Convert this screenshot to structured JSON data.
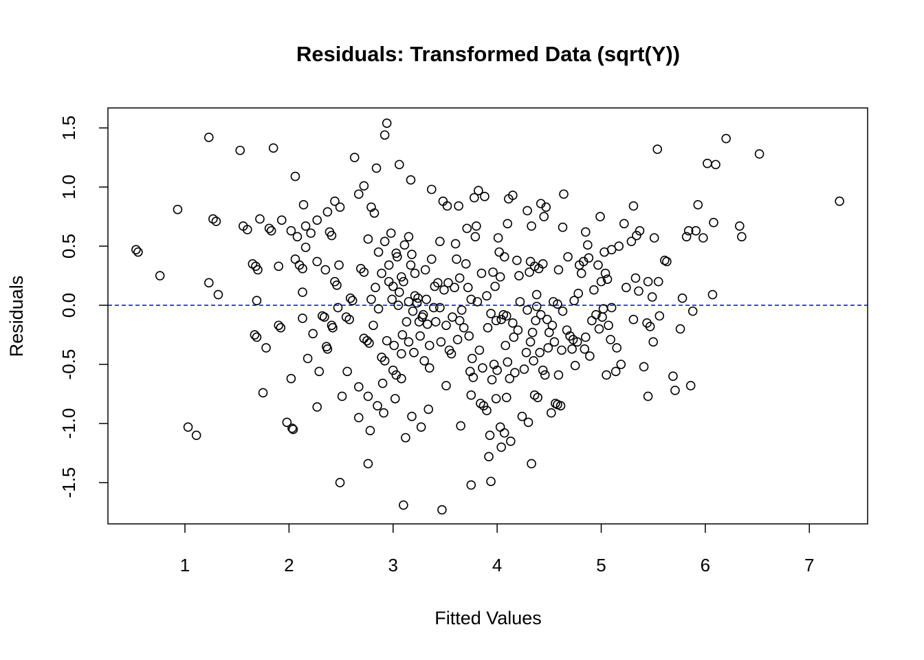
{
  "chart_data": {
    "type": "scatter",
    "title": "Residuals: Transformed Data (sqrt(Y))",
    "xlabel": "Fitted Values",
    "ylabel": "Residuals",
    "marker_color": "#000000",
    "marker": "open-circle",
    "xlim": [
      0.26,
      7.56
    ],
    "ylim": [
      -1.849,
      1.669
    ],
    "xticks": [
      1,
      2,
      3,
      4,
      5,
      6,
      7
    ],
    "yticks": [
      -1.5,
      {
        "value": -1,
        "label": "-1.0"
      },
      -0.5,
      {
        "value": 0,
        "label": "0.0"
      },
      0.5,
      {
        "value": 1,
        "label": "1.0"
      },
      1.5
    ],
    "reference_line": {
      "y": 0,
      "color": "#0000ff",
      "style": "dashed"
    },
    "x": [
      0.53,
      0.55,
      0.76,
      0.93,
      1.03,
      1.11,
      1.23,
      1.23,
      1.27,
      1.3,
      1.32,
      1.53,
      1.56,
      1.6,
      1.65,
      1.67,
      1.69,
      1.68,
      1.7,
      1.69,
      1.72,
      1.75,
      1.78,
      1.81,
      1.83,
      1.85,
      1.9,
      1.9,
      1.92,
      1.93,
      1.98,
      2.02,
      2.02,
      2.03,
      2.04,
      2.06,
      2.08,
      2.06,
      2.1,
      2.13,
      2.13,
      2.13,
      2.14,
      2.16,
      2.16,
      2.18,
      2.21,
      2.23,
      2.27,
      2.27,
      2.27,
      2.29,
      2.32,
      2.34,
      2.35,
      2.36,
      2.37,
      2.37,
      2.39,
      2.41,
      2.41,
      2.42,
      2.44,
      2.44,
      2.46,
      2.47,
      2.48,
      2.49,
      2.49,
      2.51,
      2.55,
      2.56,
      2.58,
      2.59,
      2.61,
      2.63,
      2.67,
      2.67,
      2.67,
      2.69,
      2.72,
      2.72,
      2.72,
      2.75,
      2.76,
      2.76,
      2.77,
      2.76,
      2.79,
      2.78,
      2.79,
      2.81,
      2.82,
      2.83,
      2.84,
      2.85,
      2.86,
      2.86,
      2.89,
      2.89,
      2.9,
      2.91,
      2.92,
      2.92,
      2.92,
      2.94,
      2.94,
      2.96,
      2.96,
      2.98,
      2.99,
      3.0,
      3.0,
      3.01,
      3.02,
      3.03,
      3.03,
      3.04,
      3.05,
      3.06,
      3.06,
      3.08,
      3.08,
      3.08,
      3.09,
      3.1,
      3.1,
      3.11,
      3.12,
      3.13,
      3.15,
      3.15,
      3.15,
      3.17,
      3.17,
      3.18,
      3.18,
      3.19,
      3.2,
      3.21,
      3.21,
      3.23,
      3.24,
      3.25,
      3.26,
      3.27,
      3.28,
      3.29,
      3.3,
      3.31,
      3.32,
      3.33,
      3.34,
      3.35,
      3.35,
      3.37,
      3.37,
      3.39,
      3.4,
      3.41,
      3.43,
      3.45,
      3.45,
      3.46,
      3.47,
      3.48,
      3.49,
      3.51,
      3.51,
      3.52,
      3.53,
      3.54,
      3.56,
      3.57,
      3.59,
      3.6,
      3.61,
      3.62,
      3.63,
      3.64,
      3.64,
      3.65,
      3.66,
      3.68,
      3.7,
      3.71,
      3.72,
      3.73,
      3.74,
      3.75,
      3.75,
      3.75,
      3.76,
      3.77,
      3.78,
      3.79,
      3.8,
      3.81,
      3.82,
      3.83,
      3.84,
      3.85,
      3.86,
      3.87,
      3.88,
      3.9,
      3.9,
      3.91,
      3.92,
      3.93,
      3.94,
      3.94,
      3.95,
      3.96,
      3.97,
      3.98,
      3.99,
      3.99,
      4.0,
      4.01,
      4.02,
      4.03,
      4.03,
      4.04,
      4.04,
      4.06,
      4.07,
      4.07,
      4.08,
      4.09,
      4.09,
      4.1,
      4.1,
      4.11,
      4.12,
      4.13,
      4.15,
      4.15,
      4.16,
      4.17,
      4.19,
      4.2,
      4.21,
      4.22,
      4.24,
      4.26,
      4.28,
      4.29,
      4.29,
      4.3,
      4.31,
      4.32,
      4.32,
      4.33,
      4.33,
      4.34,
      4.35,
      4.36,
      4.36,
      4.37,
      4.38,
      4.38,
      4.39,
      4.4,
      4.41,
      4.42,
      4.42,
      4.44,
      4.44,
      4.45,
      4.46,
      4.47,
      4.48,
      4.49,
      4.5,
      4.52,
      4.53,
      4.54,
      4.55,
      4.56,
      4.58,
      4.58,
      4.59,
      4.59,
      4.61,
      4.62,
      4.63,
      4.63,
      4.64,
      4.67,
      4.68,
      4.7,
      4.72,
      4.73,
      4.74,
      4.75,
      4.77,
      4.78,
      4.79,
      4.81,
      4.83,
      4.84,
      4.85,
      4.85,
      4.87,
      4.88,
      4.89,
      4.91,
      4.93,
      4.95,
      4.97,
      4.98,
      4.99,
      5.0,
      5.01,
      5.02,
      5.03,
      5.04,
      5.05,
      5.06,
      5.07,
      5.09,
      5.1,
      5.1,
      5.14,
      5.15,
      5.17,
      5.19,
      5.22,
      5.24,
      5.29,
      5.31,
      5.31,
      5.33,
      5.34,
      5.36,
      5.37,
      5.41,
      5.44,
      5.45,
      5.45,
      5.47,
      5.49,
      5.5,
      5.51,
      5.54,
      5.55,
      5.56,
      5.61,
      5.63,
      5.69,
      5.71,
      5.76,
      5.78,
      5.82,
      5.84,
      5.86,
      5.88,
      5.91,
      5.93,
      5.98,
      6.02,
      6.07,
      6.08,
      6.1,
      6.2,
      6.33,
      6.35,
      6.52,
      7.29
    ],
    "values": [
      0.47,
      0.45,
      0.25,
      0.81,
      -1.03,
      -1.1,
      1.42,
      0.19,
      0.73,
      0.71,
      0.09,
      1.31,
      0.67,
      0.64,
      0.35,
      -0.25,
      -0.27,
      0.33,
      0.3,
      0.04,
      0.73,
      -0.74,
      -0.36,
      0.65,
      0.63,
      1.33,
      0.33,
      -0.17,
      -0.19,
      0.72,
      -0.99,
      0.63,
      -0.62,
      -1.04,
      -1.05,
      1.09,
      0.58,
      0.39,
      0.34,
      0.31,
      -0.11,
      0.11,
      0.85,
      0.49,
      0.67,
      -0.45,
      0.61,
      -0.24,
      0.72,
      0.37,
      -0.86,
      -0.56,
      -0.09,
      -0.1,
      0.3,
      -0.35,
      -0.37,
      0.79,
      0.62,
      0.59,
      -0.17,
      -0.19,
      0.88,
      0.2,
      0.17,
      -0.02,
      0.34,
      0.83,
      -1.5,
      -0.77,
      -0.1,
      -0.56,
      -0.12,
      0.06,
      0.04,
      1.25,
      -0.95,
      -0.69,
      0.94,
      0.31,
      0.28,
      1.01,
      -0.28,
      -0.3,
      -1.34,
      0.56,
      -0.32,
      -0.77,
      0.83,
      -1.06,
      0.05,
      -0.17,
      0.78,
      0.15,
      1.16,
      -0.85,
      0.45,
      -0.03,
      -0.44,
      0.27,
      -0.66,
      -0.91,
      -0.47,
      1.44,
      0.54,
      1.54,
      -0.3,
      0.2,
      0.34,
      0.61,
      0.05,
      -0.55,
      0.16,
      -0.34,
      -0.79,
      0.44,
      -0.59,
      0.41,
      0.0,
      1.19,
      0.11,
      -0.41,
      0.24,
      -0.62,
      -0.25,
      -1.69,
      0.2,
      0.51,
      -1.12,
      -0.14,
      -0.31,
      0.03,
      0.58,
      0.34,
      1.06,
      -0.94,
      0.43,
      -0.05,
      -0.4,
      0.27,
      0.08,
      0.02,
      0.06,
      -0.14,
      -0.26,
      -1.03,
      -0.1,
      -0.08,
      -0.47,
      0.3,
      0.05,
      -0.16,
      -0.88,
      -0.34,
      -0.53,
      0.39,
      0.98,
      -0.02,
      0.16,
      -0.14,
      0.19,
      -0.02,
      0.54,
      -0.31,
      -1.73,
      0.88,
      0.13,
      -0.68,
      -0.17,
      0.84,
      0.19,
      -0.38,
      -0.41,
      -0.1,
      0.15,
      0.52,
      0.39,
      -0.29,
      0.84,
      0.23,
      -0.13,
      -1.02,
      -0.04,
      -0.19,
      0.35,
      0.65,
      0.15,
      -0.26,
      -0.56,
      0.05,
      -1.52,
      -0.76,
      -0.45,
      -0.61,
      0.91,
      0.58,
      0.67,
      0.03,
      0.97,
      -0.38,
      -0.83,
      0.27,
      -0.53,
      -0.85,
      0.92,
      -0.89,
      0.08,
      -0.19,
      -1.28,
      -1.1,
      -1.49,
      -0.07,
      -0.63,
      0.28,
      -0.5,
      0.16,
      -0.13,
      -0.79,
      -0.55,
      0.57,
      0.45,
      -1.03,
      0.24,
      -0.12,
      -1.2,
      -0.08,
      0.41,
      -1.08,
      -0.34,
      -0.09,
      -0.78,
      -0.48,
      0.69,
      0.9,
      -0.62,
      -1.15,
      -0.15,
      0.93,
      -0.27,
      -0.57,
      0.38,
      -0.21,
      0.25,
      0.03,
      -0.94,
      -0.54,
      -0.4,
      -0.04,
      0.8,
      -0.99,
      0.28,
      -0.31,
      0.37,
      -1.34,
      0.67,
      -0.23,
      -0.47,
      -0.76,
      0.33,
      -0.13,
      -0.01,
      0.09,
      -0.78,
      0.31,
      -0.4,
      -0.08,
      0.86,
      -0.55,
      0.35,
      0.75,
      -0.59,
      0.83,
      -0.12,
      -0.36,
      -0.23,
      -0.91,
      -0.17,
      0.03,
      -0.31,
      -0.83,
      0.01,
      -0.84,
      -0.59,
      0.3,
      -0.85,
      -0.38,
      -0.05,
      0.66,
      0.94,
      -0.21,
      0.41,
      -0.26,
      -0.37,
      -0.29,
      0.04,
      -0.51,
      -0.31,
      0.1,
      0.34,
      0.27,
      0.37,
      -0.37,
      0.62,
      -0.27,
      0.51,
      0.4,
      -0.43,
      -0.13,
      0.13,
      -0.08,
      0.34,
      -0.2,
      0.75,
      0.2,
      -0.1,
      -0.03,
      0.45,
      0.27,
      -0.59,
      0.22,
      -0.17,
      -0.29,
      -0.02,
      0.47,
      -0.56,
      -0.36,
      0.5,
      -0.5,
      0.69,
      0.15,
      0.54,
      -0.12,
      0.84,
      0.23,
      0.59,
      0.12,
      0.63,
      -0.52,
      -0.15,
      0.2,
      -0.77,
      -0.18,
      0.07,
      -0.31,
      0.57,
      1.32,
      0.2,
      -0.09,
      0.38,
      0.37,
      -0.6,
      -0.72,
      -0.2,
      0.06,
      0.58,
      0.63,
      -0.68,
      -0.05,
      0.63,
      0.85,
      0.57,
      1.2,
      0.09,
      0.7,
      1.19,
      1.41,
      0.67,
      0.58,
      1.28,
      0.88
    ]
  }
}
